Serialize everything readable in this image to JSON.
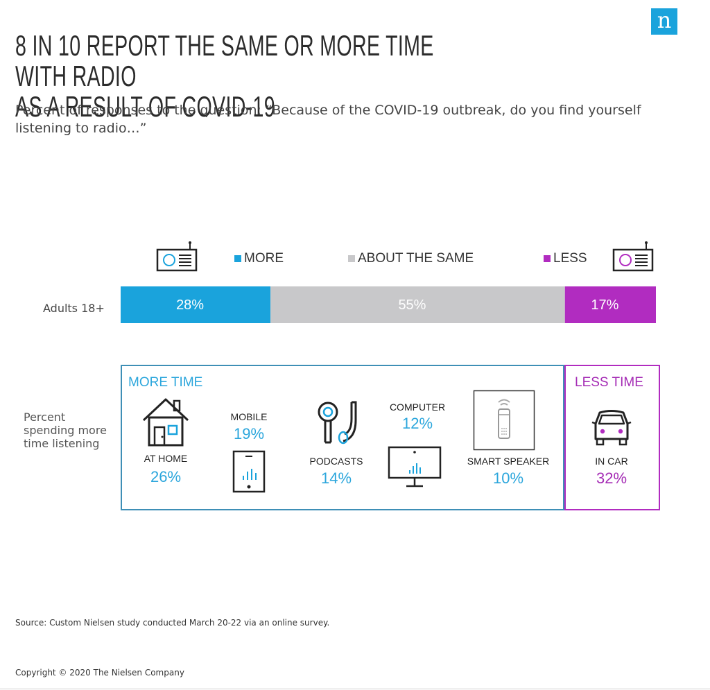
{
  "brand": {
    "logo_letter": "n",
    "logo_color": "#1aa3dc"
  },
  "title_line1": "8 IN 10 REPORT THE SAME OR MORE TIME WITH RADIO",
  "title_line2": "AS A RESULT OF COVID-19",
  "subtitle": "Percent of responses to the question: “Because of the COVID-19 outbreak, do you find yourself listening to radio…”",
  "legend": {
    "more": "MORE",
    "same": "ABOUT THE SAME",
    "less": "LESS"
  },
  "colors": {
    "more": "#1aa3dc",
    "same": "#c8c8ca",
    "less": "#b12cc0",
    "more_text": "#2ba6dc",
    "less_text": "#a52cb5",
    "more_border": "#3e8fb6"
  },
  "chart_data": {
    "type": "bar",
    "orientation": "horizontal-stacked",
    "categories": [
      "Adults 18+"
    ],
    "series": [
      {
        "name": "MORE",
        "values": [
          28
        ],
        "label": "28%"
      },
      {
        "name": "ABOUT THE SAME",
        "values": [
          55
        ],
        "label": "55%"
      },
      {
        "name": "LESS",
        "values": [
          17
        ],
        "label": "17%"
      }
    ],
    "xlim": [
      0,
      100
    ]
  },
  "breakdown": {
    "row_label": "Percent spending more time listening",
    "row_label_lines": [
      "Percent",
      "spending more",
      "time listening"
    ],
    "more_title": "MORE TIME",
    "less_title": "LESS TIME",
    "items": [
      {
        "label": "AT HOME",
        "value": "26%",
        "icon": "house-icon"
      },
      {
        "label": "MOBILE",
        "value": "19%",
        "icon": "mobile-phone-icon"
      },
      {
        "label": "PODCASTS",
        "value": "14%",
        "icon": "podcast-microphone-icon"
      },
      {
        "label": "COMPUTER",
        "value": "12%",
        "icon": "computer-monitor-icon"
      },
      {
        "label": "SMART SPEAKER",
        "value": "10%",
        "icon": "smart-speaker-icon"
      }
    ],
    "less_item": {
      "label": "IN CAR",
      "value": "32%",
      "icon": "car-icon"
    }
  },
  "source": "Source: Custom Nielsen study conducted March 20-22 via an online survey.",
  "copyright": "Copyright © 2020 The Nielsen Company"
}
